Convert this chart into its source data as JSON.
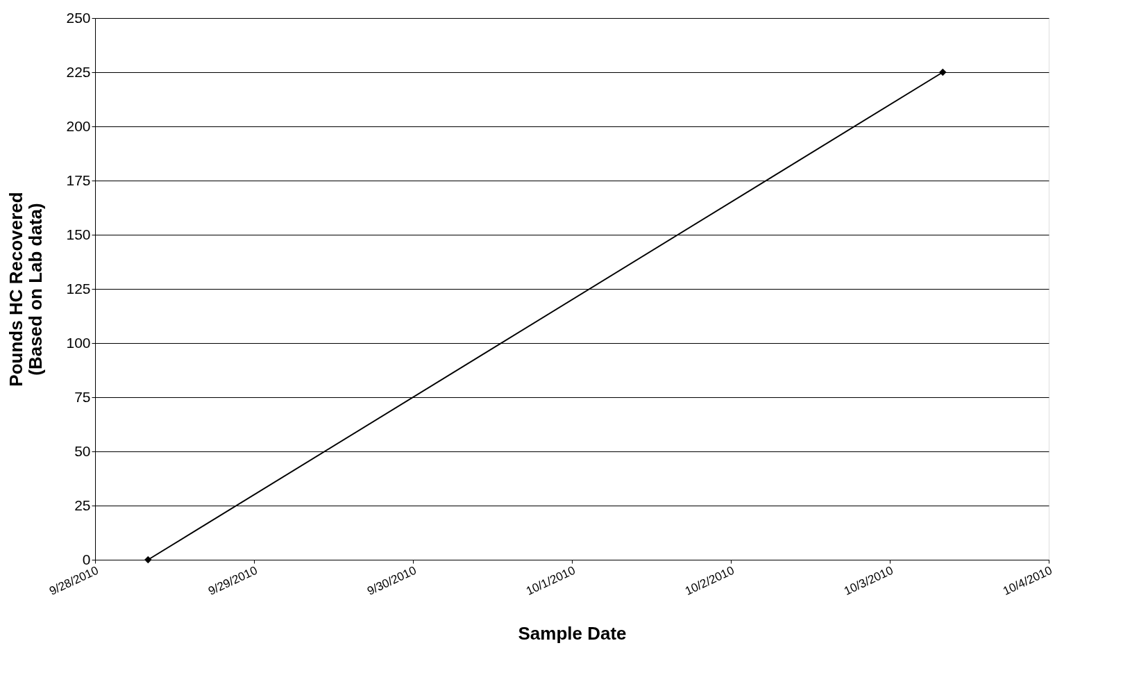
{
  "chart_data": {
    "type": "line",
    "xlabel": "Sample Date",
    "ylabel": "Pounds HC Recovered\n(Based on Lab data)",
    "x": [
      "2010-09-28T08:00",
      "2010-10-03T08:00"
    ],
    "series": [
      {
        "color": "#000000",
        "values": [
          0,
          225
        ]
      }
    ],
    "xlim": [
      "2010-09-28",
      "2010-10-04"
    ],
    "xticks": [
      {
        "value": "2010-09-28",
        "label": "9/28/2010"
      },
      {
        "value": "2010-09-29",
        "label": "9/29/2010"
      },
      {
        "value": "2010-09-30",
        "label": "9/30/2010"
      },
      {
        "value": "2010-10-01",
        "label": "10/1/2010"
      },
      {
        "value": "2010-10-02",
        "label": "10/2/2010"
      },
      {
        "value": "2010-10-03",
        "label": "10/3/2010"
      },
      {
        "value": "2010-10-04",
        "label": "10/4/2010"
      }
    ],
    "ylim": [
      0,
      250
    ],
    "yticks": [
      0,
      25,
      50,
      75,
      100,
      125,
      150,
      175,
      200,
      225,
      250
    ],
    "grid": "y",
    "marker": "diamond",
    "line_style": "solid"
  }
}
